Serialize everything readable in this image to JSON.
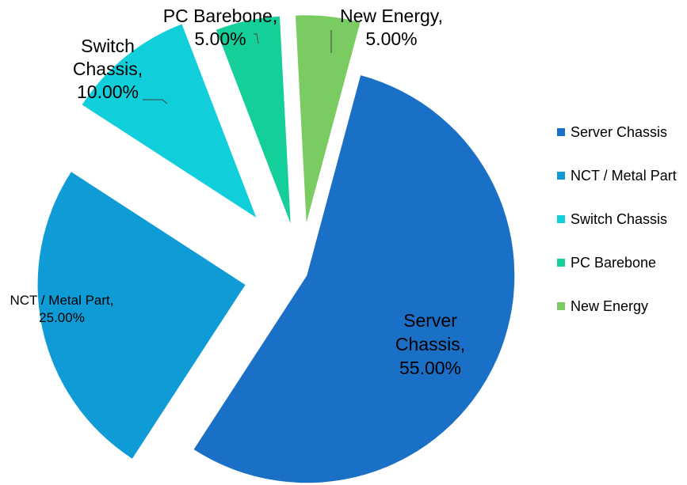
{
  "chart_data": {
    "type": "pie",
    "title": "",
    "slices": [
      {
        "category": "Server Chassis",
        "percent": 55.0,
        "color": "#1A6FC6",
        "label": [
          "Server",
          "Chassis,",
          "55.00%"
        ]
      },
      {
        "category": "NCT / Metal Part",
        "percent": 25.0,
        "color": "#0F9BD6",
        "label": [
          "NCT / Metal Part,",
          "25.00%"
        ]
      },
      {
        "category": "Switch Chassis",
        "percent": 10.0,
        "color": "#10CFDB",
        "label": [
          "Switch",
          "Chassis,",
          "10.00%"
        ]
      },
      {
        "category": "PC Barebone",
        "percent": 5.0,
        "color": "#14CF99",
        "label": [
          "PC Barebone,",
          "5.00%"
        ]
      },
      {
        "category": "New Energy",
        "percent": 5.0,
        "color": "#7ACB61",
        "label": [
          "New Energy,",
          "5.00%"
        ]
      }
    ],
    "legend": {
      "placement": "right",
      "entries": [
        "Server Chassis",
        "NCT / Metal Part",
        "Switch Chassis",
        "PC Barebone",
        "New Energy"
      ]
    },
    "exploded": true
  }
}
